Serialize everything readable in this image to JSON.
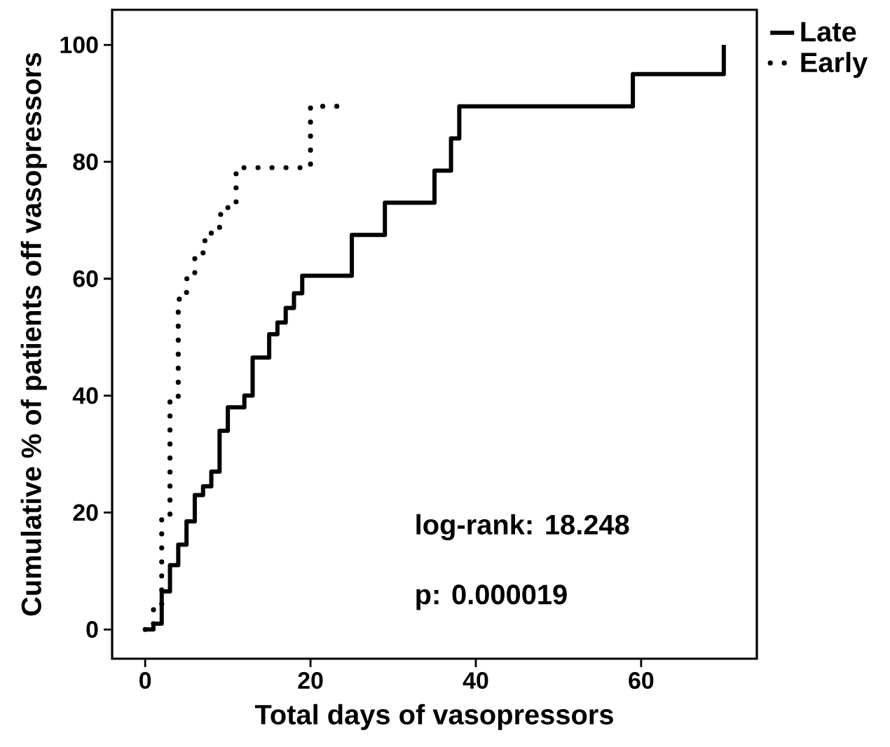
{
  "chart_data": {
    "type": "step",
    "xlabel": "Total days of vasopressors",
    "ylabel": "Cumulative % of patients off vasopressors",
    "xlim": [
      -4,
      74
    ],
    "ylim": [
      -5,
      106
    ],
    "xticks": [
      0,
      20,
      40,
      60
    ],
    "yticks": [
      0,
      20,
      40,
      60,
      80,
      100
    ],
    "grid": false,
    "legend": "top right",
    "marker": "none",
    "series": [
      {
        "name": "Late",
        "color": "#000000",
        "line_style": "solid",
        "x": [
          0,
          1,
          2,
          3,
          4,
          5,
          6,
          7,
          8,
          9,
          10,
          12,
          13,
          15,
          16,
          17,
          18,
          19,
          25,
          29,
          35,
          37,
          38,
          59,
          70
        ],
        "values": [
          0,
          1,
          6.5,
          11,
          14.5,
          18.5,
          23,
          24.5,
          27,
          34,
          38,
          40,
          46.5,
          50.5,
          52.5,
          55,
          57.5,
          60.5,
          67.5,
          73,
          78.5,
          84,
          89.5,
          95,
          100
        ]
      },
      {
        "name": "Early",
        "color": "#000000",
        "line_style": "dotted",
        "x": [
          0,
          1,
          2,
          3,
          4,
          5,
          6,
          7,
          8,
          9,
          10,
          11,
          20,
          24
        ],
        "values": [
          0,
          4,
          19.5,
          39,
          56.5,
          60,
          63.5,
          66.5,
          68.5,
          71,
          72.5,
          79,
          89.5,
          89.5
        ]
      }
    ],
    "annotations": [
      "log-rank: 18.248",
      "p: 0.000019"
    ]
  }
}
